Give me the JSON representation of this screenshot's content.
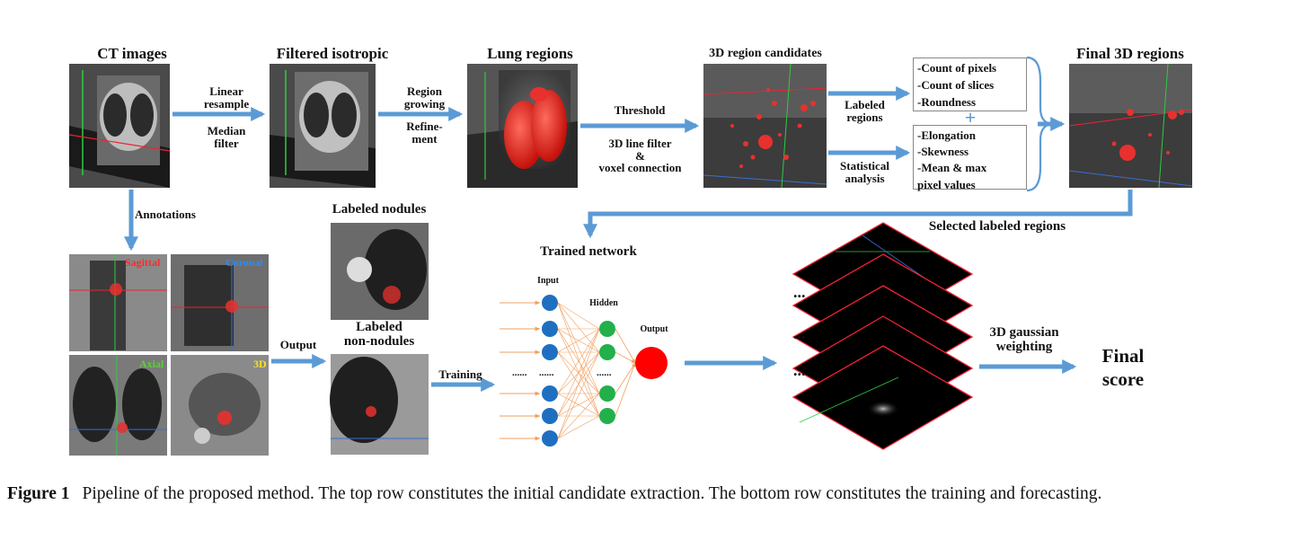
{
  "top_row": {
    "ct_images": "CT images",
    "filtered_isotropic": "Filtered isotropic",
    "lung_regions": "Lung regions",
    "region_candidates": "3D region candidates",
    "final_regions": "Final 3D regions",
    "linear_resample": [
      "Linear",
      "resample"
    ],
    "median_filter": [
      "Median",
      "filter"
    ],
    "region_growing": [
      "Region",
      "growing"
    ],
    "refinement": [
      "Refine-",
      "ment"
    ],
    "threshold": "Threshold",
    "line_filter": [
      "3D line filter",
      "&",
      "voxel connection"
    ],
    "labeled_regions": [
      "Labeled",
      "regions"
    ],
    "statistical_analysis": [
      "Statistical",
      "analysis"
    ],
    "features_box1": [
      "-Count of pixels",
      "-Count of slices",
      "-Roundness"
    ],
    "plus": "+",
    "features_box2": [
      "-Elongation",
      "-Skewness",
      "-Mean & max",
      "pixel values"
    ]
  },
  "bottom_row": {
    "annotations": "Annotations",
    "sagittal": "Sagittal",
    "coronal": "Coronal",
    "axial": "Axial",
    "three_d": "3D",
    "output": "Output",
    "labeled_nodules": "Labeled nodules",
    "labeled_non_nodules": [
      "Labeled",
      "non-nodules"
    ],
    "training": "Training",
    "trained_network": "Trained network",
    "input": "Input",
    "hidden": "Hidden",
    "output_node": "Output",
    "selected_labeled_regions": "Selected labeled regions",
    "gaussian": [
      "3D gaussian",
      "weighting"
    ],
    "final_score": [
      "Final",
      "score"
    ],
    "ellipsis_dots": "...",
    "dashes": "......"
  },
  "caption": {
    "figure_label": "Figure 1",
    "text": "Pipeline of the proposed method. The top row constitutes the initial candidate extraction. The bottom row constitutes the training and forecasting."
  },
  "colors": {
    "arrow": "#5b9bd5",
    "nodule": "#e8312e",
    "input_node": "#1f6fc1",
    "hidden_node": "#22b04b",
    "output_node": "#ff0000",
    "sagittal_text": "#ff2a2a",
    "coronal_text": "#2a8cff",
    "axial_text": "#5ccf3a",
    "three_d_text": "#ffe020"
  }
}
